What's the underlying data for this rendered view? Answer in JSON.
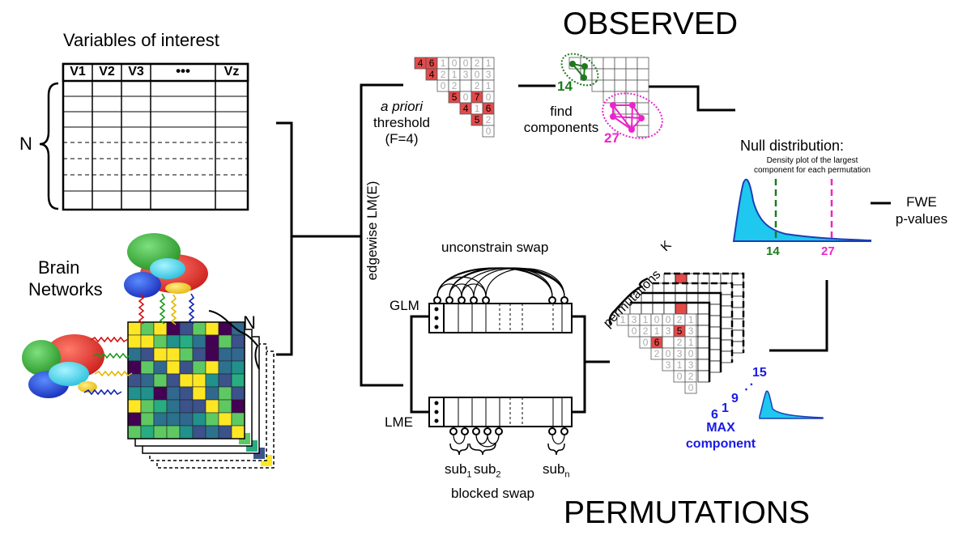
{
  "section_titles": {
    "observed": "OBSERVED",
    "permutations": "PERMUTATIONS"
  },
  "variables_table": {
    "title": "Variables of interest",
    "columns": [
      "V1",
      "V2",
      "V3",
      "•••",
      "Vz"
    ],
    "rows_label": "N"
  },
  "brain_networks": {
    "label_line1": "Brain",
    "label_line2": "Networks",
    "stack_label": "N"
  },
  "edgewise_label": "edgewise LM(E)",
  "threshold": {
    "line1": "a priori",
    "line2": "threshold",
    "line3": "(F=4)",
    "matrix_rows": [
      [
        "4",
        "6",
        "1",
        "0",
        "0",
        "2",
        "1"
      ],
      [
        "",
        "4",
        "2",
        "1",
        "3",
        "0",
        "3"
      ],
      [
        "",
        "",
        "0",
        "2",
        "",
        "2",
        "1"
      ],
      [
        "",
        "",
        "",
        "5",
        "0",
        "7",
        "0"
      ],
      [
        "",
        "",
        "",
        "",
        "4",
        "1",
        "6"
      ],
      [
        "",
        "",
        "",
        "",
        "",
        "5",
        "2"
      ],
      [
        "",
        "",
        "",
        "",
        "",
        "",
        "0"
      ]
    ],
    "highlighted_values": [
      "4",
      "6",
      "4",
      "5",
      "7",
      "4",
      "6",
      "5"
    ]
  },
  "find_components": {
    "line1": "find",
    "line2": "components",
    "component_sizes": [
      "14",
      "27"
    ],
    "colors": {
      "small": "#1e7a1e",
      "large": "#ee22cc"
    }
  },
  "null_distribution": {
    "title": "Null distribution:",
    "subtitle_line1": "Density plot of the largest",
    "subtitle_line2": "component for each permutation",
    "markers": [
      "14",
      "27"
    ],
    "fill_color": "#1ec8ee",
    "curve_color": "#1a3fb5"
  },
  "fwe": {
    "line1": "FWE",
    "line2": "p-values"
  },
  "swap": {
    "unconstrained": "unconstrain swap",
    "blocked": "blocked swap",
    "glm": "GLM",
    "lme": "LME",
    "subjects": [
      {
        "base": "sub",
        "sub": "1"
      },
      {
        "base": "sub",
        "sub": "2"
      },
      {
        "base": "sub",
        "sub": "n"
      }
    ]
  },
  "permutations_block": {
    "k_label_line1": "K",
    "k_label_line2": "permutations",
    "matrix_rows": [
      [
        "1",
        "3",
        "1",
        "0",
        "0",
        "2",
        "1"
      ],
      [
        "",
        "0",
        "2",
        "1",
        "3",
        "5",
        "3"
      ],
      [
        "",
        "",
        "0",
        "6",
        "",
        "2",
        "1"
      ],
      [
        "",
        "",
        "",
        "2",
        "0",
        "3",
        "0"
      ],
      [
        "",
        "",
        "",
        "",
        "3",
        "1",
        "3"
      ],
      [
        "",
        "",
        "",
        "",
        "",
        "0",
        "2"
      ],
      [
        "",
        "",
        "",
        "",
        "",
        "",
        "0"
      ]
    ],
    "max_values": [
      "6",
      "1",
      "9",
      "15"
    ],
    "max_ellipsis": ". .",
    "max_label_line1": "MAX",
    "max_label_line2": "component",
    "max_color": "#1a1ae6"
  }
}
